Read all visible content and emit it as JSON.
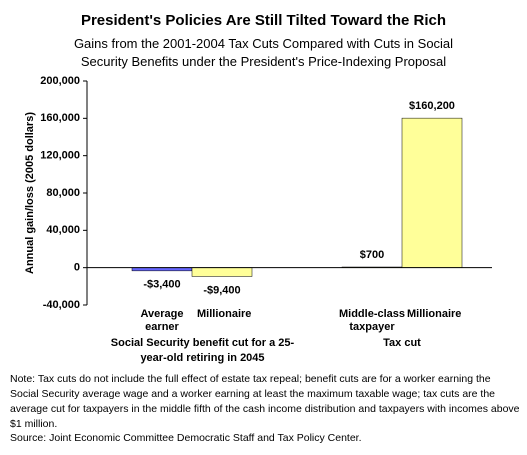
{
  "chart_data": {
    "type": "bar",
    "title": "President's Policies Are Still Tilted Toward the Rich",
    "subtitle": "Gains from the 2001-2004 Tax Cuts Compared with Cuts in Social Security Benefits under the President's Price-Indexing Proposal",
    "y_label": "Annual gain/loss (2005 dollars)",
    "categories": [
      "Average earner",
      "Millionaire",
      "Middle-class taxpayer",
      "Millionaire"
    ],
    "values": [
      -3400,
      -9400,
      700,
      160200
    ],
    "value_labels": [
      "-$3,400",
      "-$9,400",
      "$700",
      "$160,200"
    ],
    "colors": [
      "#6666ff",
      "#ffff99",
      "#ffff99",
      "#ffff99"
    ],
    "group_labels": [
      "Social Security benefit cut for a 25-year-old retiring in 2045",
      "Tax cut"
    ],
    "ylim": [
      -40000,
      200000
    ],
    "yticks": [
      {
        "value": -40000,
        "label": "-40,000"
      },
      0,
      {
        "value": 40000,
        "label": "40,000"
      },
      {
        "value": 80000,
        "label": "80,000"
      },
      {
        "value": 120000,
        "label": "120,000"
      },
      {
        "value": 160000,
        "label": "160,000"
      },
      {
        "value": 200000,
        "label": "200,000"
      }
    ],
    "note": "Note: Tax cuts do not include the full effect of estate tax repeal; benefit cuts are for a worker earning the Social Security average wage and a worker earning at least the maximum taxable wage; tax cuts are the average cut for taxpayers in the middle fifth of the cash income distribution and taxpayers with incomes above $1 million.",
    "source": "Source: Joint Economic Committee Democratic Staff and Tax Policy Center."
  }
}
